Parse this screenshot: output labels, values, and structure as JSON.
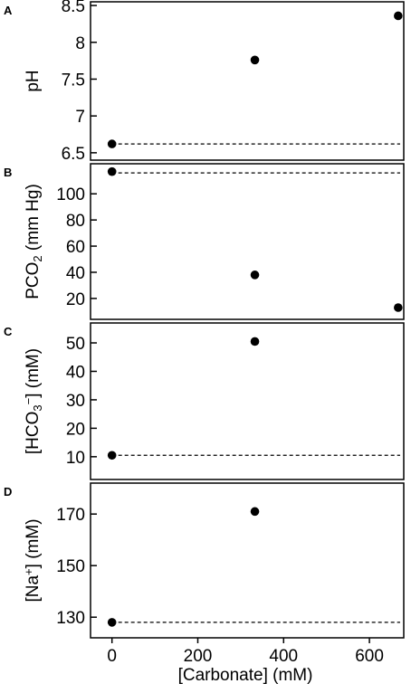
{
  "chart_data": {
    "type": "scatter",
    "xlabel": "[Carbonate] (mM)",
    "x_ticks": [
      0,
      200,
      400,
      600
    ],
    "xlim": [
      -50,
      680
    ],
    "panels": [
      {
        "letter": "A",
        "ylabel_parts": [
          {
            "t": "pH",
            "s": "n"
          }
        ],
        "ylim": [
          6.4,
          8.55
        ],
        "y_ticks": [
          6.5,
          7,
          7.5,
          8,
          8.5
        ],
        "y_tick_labels": [
          "6.5",
          "7",
          "7.5",
          "8",
          "8.5"
        ],
        "points": [
          {
            "x": 0,
            "y": 6.62
          },
          {
            "x": 333,
            "y": 7.76
          },
          {
            "x": 667,
            "y": 8.36
          }
        ],
        "reference_line": 6.62
      },
      {
        "letter": "B",
        "ylabel_parts": [
          {
            "t": "PCO",
            "s": "n"
          },
          {
            "t": "2",
            "s": "sub"
          },
          {
            "t": " (mm Hg)",
            "s": "n"
          }
        ],
        "ylim": [
          4,
          123
        ],
        "y_ticks": [
          20,
          40,
          60,
          80,
          100
        ],
        "y_tick_labels": [
          "20",
          "40",
          "60",
          "80",
          "100"
        ],
        "points": [
          {
            "x": 0,
            "y": 117
          },
          {
            "x": 333,
            "y": 38
          },
          {
            "x": 667,
            "y": 13
          }
        ],
        "reference_line": 116
      },
      {
        "letter": "C",
        "ylabel_parts": [
          {
            "t": "[HCO",
            "s": "n"
          },
          {
            "t": "3",
            "s": "sub"
          },
          {
            "t": "−",
            "s": "sup"
          },
          {
            "t": "] (mM)",
            "s": "n"
          }
        ],
        "ylim": [
          2,
          57
        ],
        "y_ticks": [
          10,
          20,
          30,
          40,
          50
        ],
        "y_tick_labels": [
          "10",
          "20",
          "30",
          "40",
          "50"
        ],
        "points": [
          {
            "x": 0,
            "y": 10.5
          },
          {
            "x": 333,
            "y": 50.5
          }
        ],
        "reference_line": 10.5
      },
      {
        "letter": "D",
        "ylabel_parts": [
          {
            "t": "[Na",
            "s": "n"
          },
          {
            "t": "+",
            "s": "sup"
          },
          {
            "t": "] (mM)",
            "s": "n"
          }
        ],
        "ylim": [
          122,
          182
        ],
        "y_ticks": [
          130,
          150,
          170
        ],
        "y_tick_labels": [
          "130",
          "150",
          "170"
        ],
        "points": [
          {
            "x": 0,
            "y": 128
          },
          {
            "x": 333,
            "y": 171
          }
        ],
        "reference_line": 128
      }
    ]
  }
}
